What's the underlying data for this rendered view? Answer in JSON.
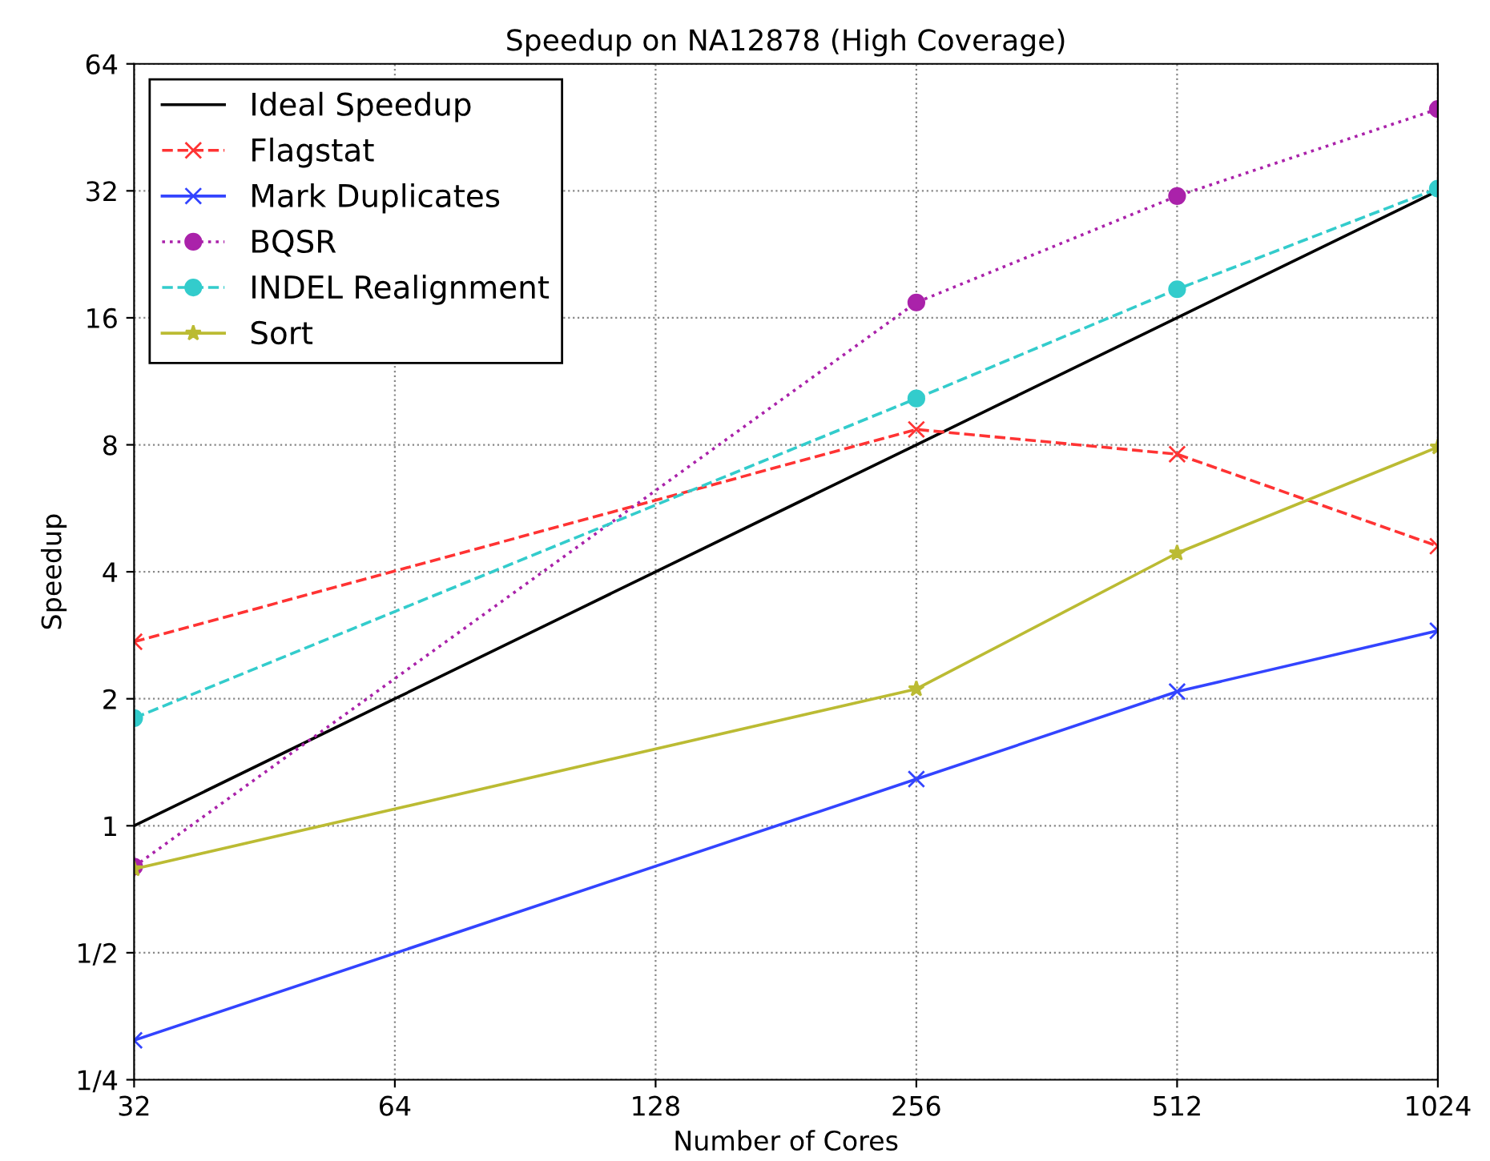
{
  "chart_data": {
    "type": "line",
    "title": "Speedup on NA12878 (High Coverage)",
    "xlabel": "Number of Cores",
    "ylabel": "Speedup",
    "log": "xy",
    "grid": true,
    "legend": "top left",
    "xlim": [
      32,
      1024
    ],
    "xticks": [
      32,
      64,
      128,
      256,
      512,
      1024
    ],
    "ylim": [
      0.25,
      64
    ],
    "yticks": [
      {
        "value": 0.25,
        "label": "1/4"
      },
      {
        "value": 0.5,
        "label": "1/2"
      },
      1,
      2,
      4,
      8,
      16,
      32,
      64
    ],
    "series": [
      {
        "name": "Ideal Speedup",
        "color": "#000000",
        "x": [
          32,
          64,
          128,
          256,
          512,
          1024
        ],
        "values": [
          1,
          2,
          4,
          8,
          16,
          32
        ],
        "marker": "none",
        "line_style": "solid"
      },
      {
        "name": "Flagstat",
        "color": "#ff3333",
        "x": [
          32,
          256,
          512,
          1024
        ],
        "values": [
          2.73,
          8.7,
          7.6,
          4.6
        ],
        "marker": "cross",
        "line_style": "dashed"
      },
      {
        "name": "Mark Duplicates",
        "color": "#3344ff",
        "x": [
          32,
          256,
          512,
          1024
        ],
        "values": [
          0.31,
          1.29,
          2.08,
          2.9
        ],
        "marker": "cross",
        "line_style": "solid"
      },
      {
        "name": "BQSR",
        "color": "#aa22aa",
        "x": [
          32,
          256,
          512,
          1024
        ],
        "values": [
          0.8,
          17.4,
          31.1,
          50
        ],
        "marker": "circle",
        "line_style": "dotted"
      },
      {
        "name": "INDEL Realignment",
        "color": "#33cccc",
        "x": [
          32,
          256,
          512,
          1024
        ],
        "values": [
          1.8,
          10.3,
          18.7,
          32.4
        ],
        "marker": "circle",
        "line_style": "dashed"
      },
      {
        "name": "Sort",
        "color": "#bbbb33",
        "x": [
          32,
          256,
          512,
          1024
        ],
        "values": [
          0.79,
          2.11,
          4.43,
          7.9
        ],
        "marker": "star",
        "line_style": "solid"
      }
    ]
  }
}
